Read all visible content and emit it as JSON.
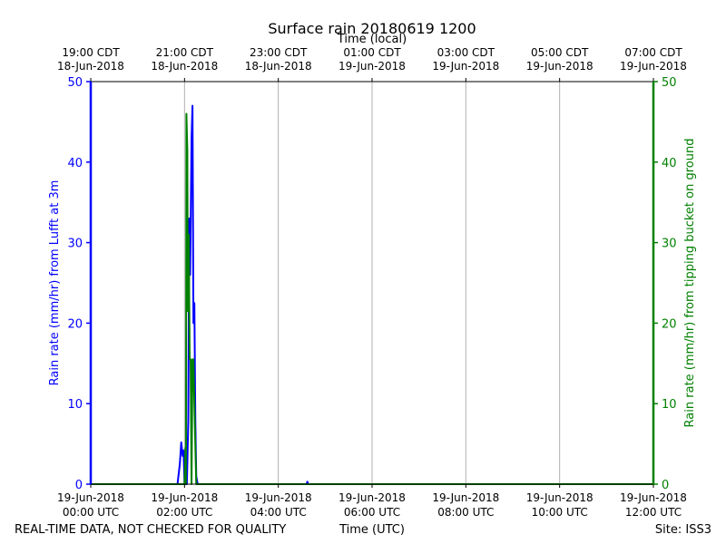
{
  "chart_data": {
    "type": "line",
    "title": "Surface rain 20180619 1200",
    "top_axis_label": "Time (local)",
    "xlabel": "Time (UTC)",
    "ylabel_left": "Rain rate (mm/hr) from Lufft at 3m",
    "ylabel_right": "Rain rate (mm/hr) from tipping bucket on ground",
    "xlim_hours_utc": [
      0,
      12
    ],
    "ylim": [
      0,
      50
    ],
    "y_ticks": [
      "0",
      "10",
      "20",
      "30",
      "40",
      "50"
    ],
    "x_ticks_bottom": [
      {
        "hour": 0,
        "line1": "19-Jun-2018",
        "line2": "00:00 UTC"
      },
      {
        "hour": 2,
        "line1": "19-Jun-2018",
        "line2": "02:00 UTC"
      },
      {
        "hour": 4,
        "line1": "19-Jun-2018",
        "line2": "04:00 UTC"
      },
      {
        "hour": 6,
        "line1": "19-Jun-2018",
        "line2": "06:00 UTC"
      },
      {
        "hour": 8,
        "line1": "19-Jun-2018",
        "line2": "08:00 UTC"
      },
      {
        "hour": 10,
        "line1": "19-Jun-2018",
        "line2": "10:00 UTC"
      },
      {
        "hour": 12,
        "line1": "19-Jun-2018",
        "line2": "12:00 UTC"
      }
    ],
    "x_ticks_top": [
      {
        "hour": 0,
        "line1": "19:00 CDT",
        "line2": "18-Jun-2018"
      },
      {
        "hour": 2,
        "line1": "21:00 CDT",
        "line2": "18-Jun-2018"
      },
      {
        "hour": 4,
        "line1": "23:00 CDT",
        "line2": "18-Jun-2018"
      },
      {
        "hour": 6,
        "line1": "01:00 CDT",
        "line2": "19-Jun-2018"
      },
      {
        "hour": 8,
        "line1": "03:00 CDT",
        "line2": "19-Jun-2018"
      },
      {
        "hour": 10,
        "line1": "05:00 CDT",
        "line2": "19-Jun-2018"
      },
      {
        "hour": 12,
        "line1": "07:00 CDT",
        "line2": "19-Jun-2018"
      }
    ],
    "grid": "vertical",
    "series": [
      {
        "axis": "left",
        "color": "#0000ff",
        "points": [
          [
            0.0,
            0
          ],
          [
            1.85,
            0
          ],
          [
            1.9,
            2.5
          ],
          [
            1.93,
            5.2
          ],
          [
            1.96,
            3.5
          ],
          [
            1.98,
            4.2
          ],
          [
            2.0,
            0
          ],
          [
            2.05,
            0
          ],
          [
            2.08,
            8
          ],
          [
            2.1,
            33
          ],
          [
            2.12,
            26
          ],
          [
            2.15,
            43
          ],
          [
            2.17,
            47
          ],
          [
            2.19,
            20
          ],
          [
            2.21,
            22.5
          ],
          [
            2.23,
            8
          ],
          [
            2.25,
            1
          ],
          [
            2.28,
            0
          ],
          [
            4.6,
            0
          ],
          [
            4.62,
            0.3
          ],
          [
            4.64,
            0
          ],
          [
            12.0,
            0
          ]
        ]
      },
      {
        "axis": "right",
        "color": "#008000",
        "points": [
          [
            0.0,
            0
          ],
          [
            2.0,
            0
          ],
          [
            2.02,
            4.5
          ],
          [
            2.03,
            0
          ],
          [
            2.04,
            46
          ],
          [
            2.06,
            41.5
          ],
          [
            2.07,
            21.5
          ],
          [
            2.09,
            31
          ],
          [
            2.11,
            15.5
          ],
          [
            2.13,
            15.5
          ],
          [
            2.15,
            0
          ],
          [
            2.17,
            15.5
          ],
          [
            2.19,
            15.5
          ],
          [
            2.21,
            10
          ],
          [
            2.23,
            5
          ],
          [
            2.25,
            0
          ],
          [
            12.0,
            0
          ]
        ]
      }
    ]
  },
  "footer": {
    "left_note": "REAL-TIME DATA, NOT CHECKED FOR QUALITY",
    "site": "Site: ISS3"
  }
}
